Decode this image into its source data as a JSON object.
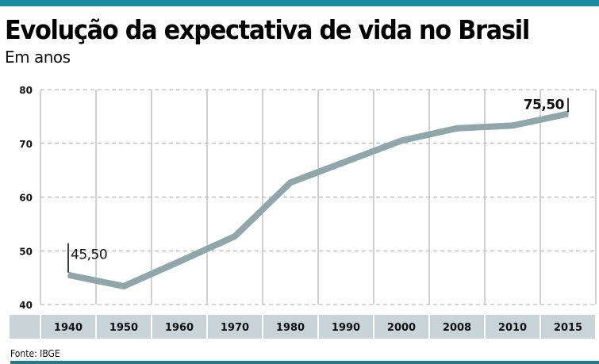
{
  "header": {
    "title": "Evolução da expectativa de vida no Brasil",
    "subtitle": "Em anos"
  },
  "footer": {
    "source": "Fonte: IBGE"
  },
  "colors": {
    "accent": "#1b8aa0",
    "line": "#8fa6ab",
    "axis_band": "#c9d4d9"
  },
  "chart_data": {
    "type": "line",
    "title": "Evolução da expectativa de vida no Brasil",
    "ylabel": "Em anos",
    "categories": [
      "1940",
      "1950",
      "1960",
      "1970",
      "1980",
      "1990",
      "2000",
      "2008",
      "2010",
      "2015"
    ],
    "series": [
      {
        "name": "Expectativa de vida",
        "values": [
          45.5,
          43.4,
          48.0,
          52.7,
          62.7,
          66.6,
          70.5,
          72.8,
          73.3,
          75.5
        ]
      }
    ],
    "ylim": [
      40,
      80
    ],
    "yticks": [
      "40",
      "50",
      "60",
      "70",
      "80"
    ],
    "grid": true,
    "annotations": [
      {
        "category": "1940",
        "label": "45,50"
      },
      {
        "category": "2015",
        "label": "75,50"
      }
    ]
  }
}
